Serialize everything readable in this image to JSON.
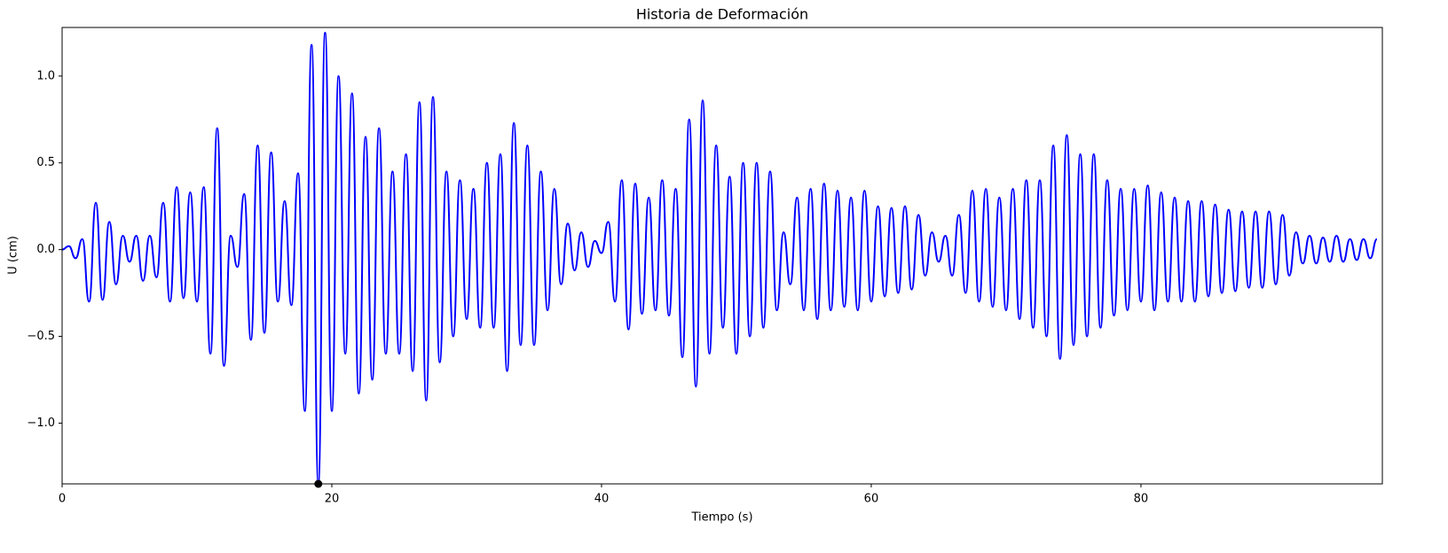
{
  "chart_data": {
    "type": "line",
    "title": "Historia de Deformación",
    "xlabel": "Tiempo (s)",
    "ylabel": "U (cm)",
    "xlim": [
      0,
      97.9
    ],
    "ylim": [
      -1.35,
      1.28
    ],
    "xticks": [
      0,
      20,
      40,
      60,
      80
    ],
    "yticks": [
      {
        "value": -1,
        "label": "−1.0"
      },
      {
        "value": -0.5,
        "label": "−0.5"
      },
      {
        "value": 0,
        "label": "0.0"
      },
      {
        "value": 0.5,
        "label": "0.5"
      },
      {
        "value": 1,
        "label": "1.0"
      }
    ],
    "x": [
      0,
      0.5,
      1,
      1.5,
      2,
      2.5,
      3,
      3.5,
      4,
      4.5,
      5,
      5.5,
      6,
      6.5,
      7,
      7.5,
      8,
      8.5,
      9,
      9.5,
      10,
      10.5,
      11,
      11.5,
      12,
      12.5,
      13,
      13.5,
      14,
      14.5,
      15,
      15.5,
      16,
      16.5,
      17,
      17.5,
      18,
      18.5,
      19,
      19.5,
      20,
      20.5,
      21,
      21.5,
      22,
      22.5,
      23,
      23.5,
      24,
      24.5,
      25,
      25.5,
      26,
      26.5,
      27,
      27.5,
      28,
      28.5,
      29,
      29.5,
      30,
      30.5,
      31,
      31.5,
      32,
      32.5,
      33,
      33.5,
      34,
      34.5,
      35,
      35.5,
      36,
      36.5,
      37,
      37.5,
      38,
      38.5,
      39,
      39.5,
      40,
      40.5,
      41,
      41.5,
      42,
      42.5,
      43,
      43.5,
      44,
      44.5,
      45,
      45.5,
      46,
      46.5,
      47,
      47.5,
      48,
      48.5,
      49,
      49.5,
      50,
      50.5,
      51,
      51.5,
      52,
      52.5,
      53,
      53.5,
      54,
      54.5,
      55,
      55.5,
      56,
      56.5,
      57,
      57.5,
      58,
      58.5,
      59,
      59.5,
      60,
      60.5,
      61,
      61.5,
      62,
      62.5,
      63,
      63.5,
      64,
      64.5,
      65,
      65.5,
      66,
      66.5,
      67,
      67.5,
      68,
      68.5,
      69,
      69.5,
      70,
      70.5,
      71,
      71.5,
      72,
      72.5,
      73,
      73.5,
      74,
      74.5,
      75,
      75.5,
      76,
      76.5,
      77,
      77.5,
      78,
      78.5,
      79,
      79.5,
      80,
      80.5,
      81,
      81.5,
      82,
      82.5,
      83,
      83.5,
      84,
      84.5,
      85,
      85.5,
      86,
      86.5,
      87,
      87.5,
      88,
      88.5,
      89,
      89.5,
      90,
      90.5,
      91,
      91.5,
      92,
      92.5,
      93,
      93.5,
      94,
      94.5,
      95,
      95.5,
      96,
      96.5,
      97,
      97.5
    ],
    "series": [
      {
        "name": "U",
        "color": "#0000ff",
        "values": [
          0,
          0.02,
          -0.05,
          0.06,
          -0.3,
          0.27,
          -0.29,
          0.16,
          -0.2,
          0.08,
          -0.07,
          0.08,
          -0.18,
          0.08,
          -0.16,
          0.27,
          -0.3,
          0.36,
          -0.28,
          0.33,
          -0.3,
          0.36,
          -0.6,
          0.7,
          -0.67,
          0.08,
          -0.1,
          0.32,
          -0.52,
          0.6,
          -0.48,
          0.56,
          -0.3,
          0.28,
          -0.32,
          0.44,
          -0.93,
          1.18,
          -1.35,
          1.25,
          -0.93,
          1.0,
          -0.6,
          0.9,
          -0.83,
          0.65,
          -0.75,
          0.7,
          -0.6,
          0.45,
          -0.6,
          0.55,
          -0.7,
          0.85,
          -0.87,
          0.88,
          -0.65,
          0.45,
          -0.5,
          0.4,
          -0.4,
          0.35,
          -0.45,
          0.5,
          -0.45,
          0.55,
          -0.7,
          0.73,
          -0.55,
          0.6,
          -0.55,
          0.45,
          -0.35,
          0.35,
          -0.2,
          0.15,
          -0.12,
          0.1,
          -0.1,
          0.05,
          -0.02,
          0.16,
          -0.3,
          0.4,
          -0.46,
          0.38,
          -0.37,
          0.3,
          -0.35,
          0.4,
          -0.38,
          0.35,
          -0.62,
          0.75,
          -0.79,
          0.86,
          -0.6,
          0.6,
          -0.45,
          0.42,
          -0.6,
          0.5,
          -0.5,
          0.5,
          -0.45,
          0.45,
          -0.35,
          0.1,
          -0.2,
          0.3,
          -0.35,
          0.35,
          -0.4,
          0.38,
          -0.35,
          0.34,
          -0.33,
          0.3,
          -0.35,
          0.34,
          -0.3,
          0.25,
          -0.27,
          0.24,
          -0.25,
          0.25,
          -0.23,
          0.2,
          -0.15,
          0.1,
          -0.07,
          0.08,
          -0.15,
          0.2,
          -0.25,
          0.34,
          -0.3,
          0.35,
          -0.33,
          0.3,
          -0.35,
          0.35,
          -0.4,
          0.4,
          -0.45,
          0.4,
          -0.5,
          0.6,
          -0.63,
          0.66,
          -0.55,
          0.55,
          -0.5,
          0.55,
          -0.45,
          0.4,
          -0.38,
          0.35,
          -0.35,
          0.35,
          -0.3,
          0.37,
          -0.35,
          0.33,
          -0.3,
          0.3,
          -0.3,
          0.28,
          -0.3,
          0.28,
          -0.27,
          0.26,
          -0.25,
          0.23,
          -0.24,
          0.22,
          -0.22,
          0.22,
          -0.22,
          0.22,
          -0.2,
          0.2,
          -0.15,
          0.1,
          -0.08,
          0.08,
          -0.08,
          0.07,
          -0.07,
          0.08,
          -0.07,
          0.06,
          -0.06,
          0.06,
          -0.05,
          0.06
        ]
      }
    ],
    "highlight": {
      "x": 19,
      "y": -1.35,
      "color": "#000000"
    }
  }
}
